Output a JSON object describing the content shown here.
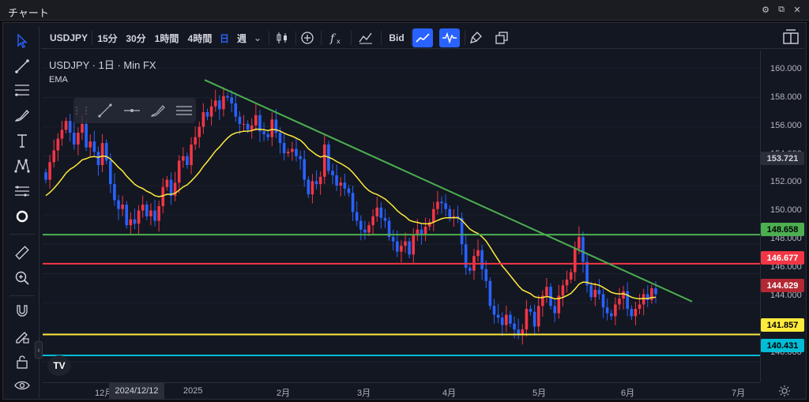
{
  "window": {
    "title": "チャート"
  },
  "toolbar": {
    "symbol": "USDJPY",
    "intervals": [
      "15分",
      "30分",
      "1時間",
      "4時間",
      "日",
      "週"
    ],
    "active_interval": "日",
    "bid_label": "Bid"
  },
  "legend": {
    "line1": "USDJPY · 1日 · Min FX",
    "line2": "EMA"
  },
  "price_axis": {
    "ticks": [
      "160.000",
      "158.000",
      "156.000",
      "154.000",
      "152.000",
      "150.000",
      "148.000",
      "146.000",
      "144.000",
      "140.000"
    ]
  },
  "price_tags": [
    {
      "label": "153.721",
      "value": 153.721,
      "bg": "#2a2e39",
      "fg": "#d1d4dc"
    },
    {
      "label": "148.658",
      "value": 148.658,
      "bg": "#4caf50",
      "fg": "#000000"
    },
    {
      "label": "146.677",
      "value": 146.677,
      "bg": "#f23645",
      "fg": "#ffffff"
    },
    {
      "label": "144.629",
      "value": 144.629,
      "bg": "#b22833",
      "fg": "#ffffff"
    },
    {
      "label": "141.857",
      "value": 141.857,
      "bg": "#ffeb3b",
      "fg": "#000000"
    },
    {
      "label": "140.431",
      "value": 140.431,
      "bg": "#00bcd4",
      "fg": "#000000"
    }
  ],
  "horizontal_lines": [
    {
      "value": 148.658,
      "color": "#4caf50"
    },
    {
      "value": 146.677,
      "color": "#f23645"
    },
    {
      "value": 141.857,
      "color": "#ffeb3b"
    },
    {
      "value": 140.431,
      "color": "#00bcd4"
    }
  ],
  "time_axis": {
    "ticks": [
      "12月",
      "2025",
      "2月",
      "3月",
      "4月",
      "5月",
      "6月",
      "7月"
    ],
    "crosshair_date": "2024/12/12"
  },
  "colors": {
    "up": "#f23645",
    "down": "#2962ff",
    "ema": "#ffeb3b",
    "trend": "#4caf50"
  },
  "chart_data": {
    "type": "candlestick",
    "symbol": "USDJPY",
    "timeframe": "1日",
    "ylim": [
      138.6,
      161.2
    ],
    "closes": [
      152.4,
      153.6,
      154.4,
      155.2,
      155.8,
      156.4,
      155.6,
      154.8,
      155.6,
      156.2,
      154.6,
      155.0,
      154.3,
      153.4,
      154.9,
      153.7,
      152.1,
      151.0,
      150.4,
      150.7,
      149.3,
      149.7,
      149.4,
      150.3,
      150.7,
      149.9,
      150.3,
      149.6,
      150.6,
      151.9,
      152.4,
      151.3,
      152.2,
      153.7,
      154.0,
      153.4,
      154.8,
      155.3,
      156.0,
      157.0,
      156.7,
      157.4,
      157.8,
      157.2,
      158.1,
      158.0,
      157.6,
      156.7,
      156.2,
      156.2,
      155.8,
      156.1,
      156.8,
      155.7,
      155.5,
      155.3,
      156.5,
      155.6,
      154.9,
      154.2,
      154.3,
      154.5,
      154.0,
      153.8,
      152.4,
      151.4,
      152.3,
      152.1,
      152.6,
      154.8,
      153.0,
      152.7,
      152.0,
      152.2,
      151.8,
      151.5,
      150.2,
      149.6,
      149.0,
      148.8,
      149.3,
      149.9,
      150.5,
      149.8,
      149.6,
      148.5,
      148.2,
      147.5,
      147.9,
      148.2,
      147.3,
      148.6,
      149.0,
      148.7,
      149.2,
      149.5,
      150.4,
      150.9,
      150.8,
      150.4,
      149.8,
      149.9,
      149.8,
      148.0,
      146.4,
      146.2,
      147.2,
      147.6,
      146.3,
      145.5,
      143.8,
      143.2,
      143.0,
      142.5,
      143.2,
      142.6,
      142.2,
      141.9,
      142.2,
      143.6,
      143.4,
      142.4,
      143.8,
      144.5,
      145.1,
      143.8,
      143.3,
      144.5,
      145.2,
      145.6,
      146.1,
      147.7,
      148.5,
      146.8,
      145.2,
      144.4,
      144.9,
      144.6,
      143.7,
      143.3,
      143.1,
      143.9,
      144.3,
      144.8,
      143.6,
      143.1,
      143.6,
      143.9,
      144.6,
      144.2,
      145.0,
      144.6
    ],
    "ema": {
      "name": "EMA",
      "from_close_period": 20
    },
    "horizontal_levels": [
      148.658,
      146.677,
      141.857,
      140.431
    ],
    "trendline": [
      {
        "x": "2025-01-10",
        "y": 159.2
      },
      {
        "x": "2025-06-23",
        "y": 144.1
      }
    ]
  }
}
